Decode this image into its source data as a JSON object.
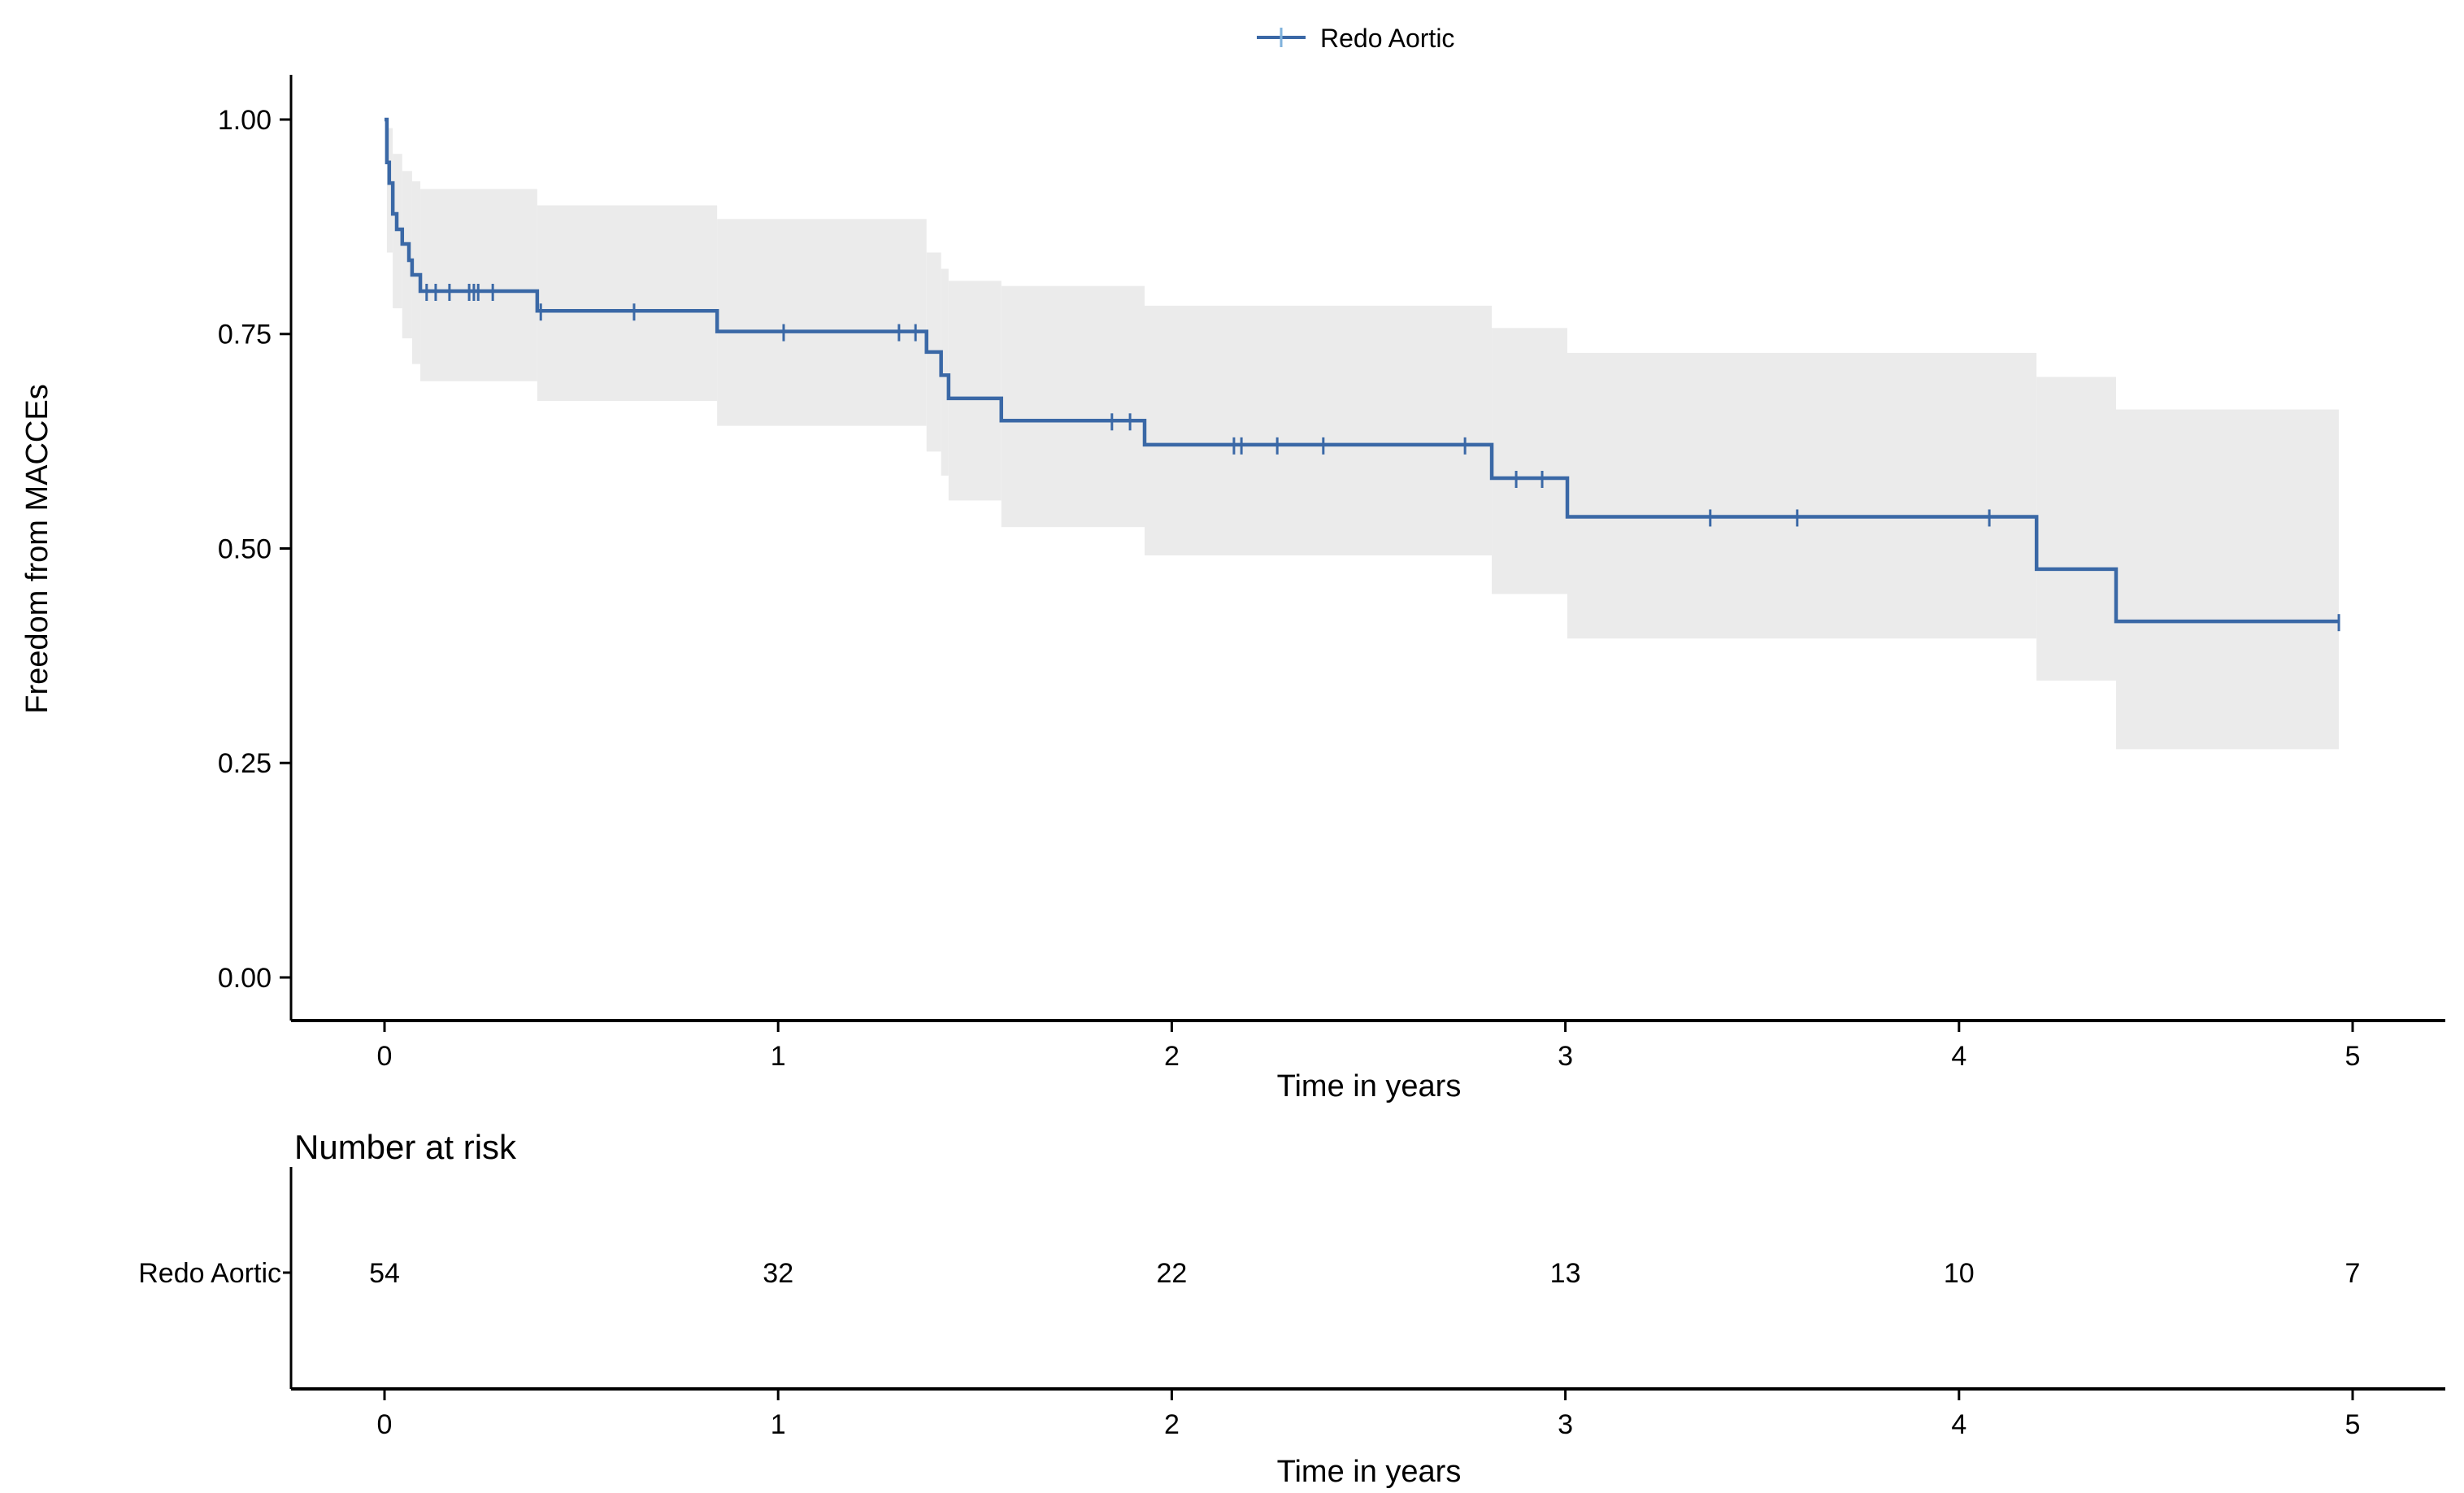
{
  "colors": {
    "curve": "#3A68A6",
    "censor": "#3A68A6",
    "legend_tick": "#7FB2DC",
    "band": "#EBEBEB",
    "axis": "#000000",
    "risk_label": "#2E66AC"
  },
  "chart_data": {
    "type": "line",
    "subtype": "kaplan-meier-step",
    "title": "",
    "ylabel": "Freedom from MACCEs",
    "xlabel": "Time in years",
    "xlim": [
      0,
      5
    ],
    "ylim": [
      0,
      1
    ],
    "grid": false,
    "legend_position": "top",
    "legend": [
      {
        "label": "Redo Aortic",
        "color": "#3A68A6"
      }
    ],
    "yticks": [
      {
        "value": 0.0,
        "label": "0.00"
      },
      {
        "value": 0.25,
        "label": "0.25"
      },
      {
        "value": 0.5,
        "label": "0.50"
      },
      {
        "value": 0.75,
        "label": "0.75"
      },
      {
        "value": 1.0,
        "label": "1.00"
      }
    ],
    "xticks": [
      {
        "value": 0,
        "label": "0"
      },
      {
        "value": 1,
        "label": "1"
      },
      {
        "value": 2,
        "label": "2"
      },
      {
        "value": 3,
        "label": "3"
      },
      {
        "value": 4,
        "label": "4"
      },
      {
        "value": 5,
        "label": "5"
      }
    ],
    "series": [
      {
        "name": "Redo Aortic",
        "steps": [
          [
            0.0,
            1.0
          ],
          [
            0.006,
            0.95
          ],
          [
            0.012,
            0.926
          ],
          [
            0.021,
            0.89
          ],
          [
            0.031,
            0.872
          ],
          [
            0.045,
            0.855
          ],
          [
            0.062,
            0.836
          ],
          [
            0.07,
            0.819
          ],
          [
            0.091,
            0.8
          ],
          [
            0.388,
            0.777
          ],
          [
            0.845,
            0.753
          ],
          [
            1.377,
            0.729
          ],
          [
            1.414,
            0.702
          ],
          [
            1.433,
            0.675
          ],
          [
            1.567,
            0.649
          ],
          [
            1.931,
            0.621
          ],
          [
            2.813,
            0.582
          ],
          [
            3.005,
            0.537
          ],
          [
            4.197,
            0.476
          ],
          [
            4.399,
            0.415
          ]
        ],
        "end_time": 4.965,
        "censors": [
          [
            0.107,
            0.8
          ],
          [
            0.13,
            0.8
          ],
          [
            0.165,
            0.8
          ],
          [
            0.215,
            0.8
          ],
          [
            0.227,
            0.8
          ],
          [
            0.238,
            0.8
          ],
          [
            0.275,
            0.8
          ],
          [
            0.397,
            0.777
          ],
          [
            0.634,
            0.777
          ],
          [
            1.014,
            0.753
          ],
          [
            1.307,
            0.753
          ],
          [
            1.349,
            0.753
          ],
          [
            1.848,
            0.649
          ],
          [
            1.894,
            0.649
          ],
          [
            2.158,
            0.621
          ],
          [
            2.177,
            0.621
          ],
          [
            2.268,
            0.621
          ],
          [
            2.385,
            0.621
          ],
          [
            2.745,
            0.621
          ],
          [
            2.875,
            0.582
          ],
          [
            2.941,
            0.582
          ],
          [
            3.368,
            0.537
          ],
          [
            3.589,
            0.537
          ],
          [
            4.077,
            0.537
          ],
          [
            4.965,
            0.415
          ]
        ],
        "ci": [
          [
            0.006,
            0.021,
            0.845,
            0.99
          ],
          [
            0.021,
            0.045,
            0.78,
            0.96
          ],
          [
            0.045,
            0.07,
            0.745,
            0.94
          ],
          [
            0.07,
            0.091,
            0.715,
            0.928
          ],
          [
            0.091,
            0.388,
            0.695,
            0.919
          ],
          [
            0.388,
            0.845,
            0.672,
            0.9
          ],
          [
            0.845,
            1.377,
            0.643,
            0.884
          ],
          [
            1.377,
            1.414,
            0.613,
            0.845
          ],
          [
            1.414,
            1.433,
            0.585,
            0.826
          ],
          [
            1.433,
            1.567,
            0.556,
            0.812
          ],
          [
            1.567,
            1.931,
            0.525,
            0.806
          ],
          [
            1.931,
            2.813,
            0.492,
            0.783
          ],
          [
            2.813,
            3.005,
            0.447,
            0.757
          ],
          [
            3.005,
            4.197,
            0.395,
            0.728
          ],
          [
            4.197,
            4.399,
            0.346,
            0.7
          ],
          [
            4.399,
            4.965,
            0.266,
            0.662
          ]
        ]
      }
    ],
    "risk_table": {
      "title": "Number at risk",
      "xlabel": "Time in years",
      "times": [
        0,
        1,
        2,
        3,
        4,
        5
      ],
      "rows": [
        {
          "label": "Redo Aortic",
          "values": [
            54,
            32,
            22,
            13,
            10,
            7
          ]
        }
      ]
    }
  }
}
